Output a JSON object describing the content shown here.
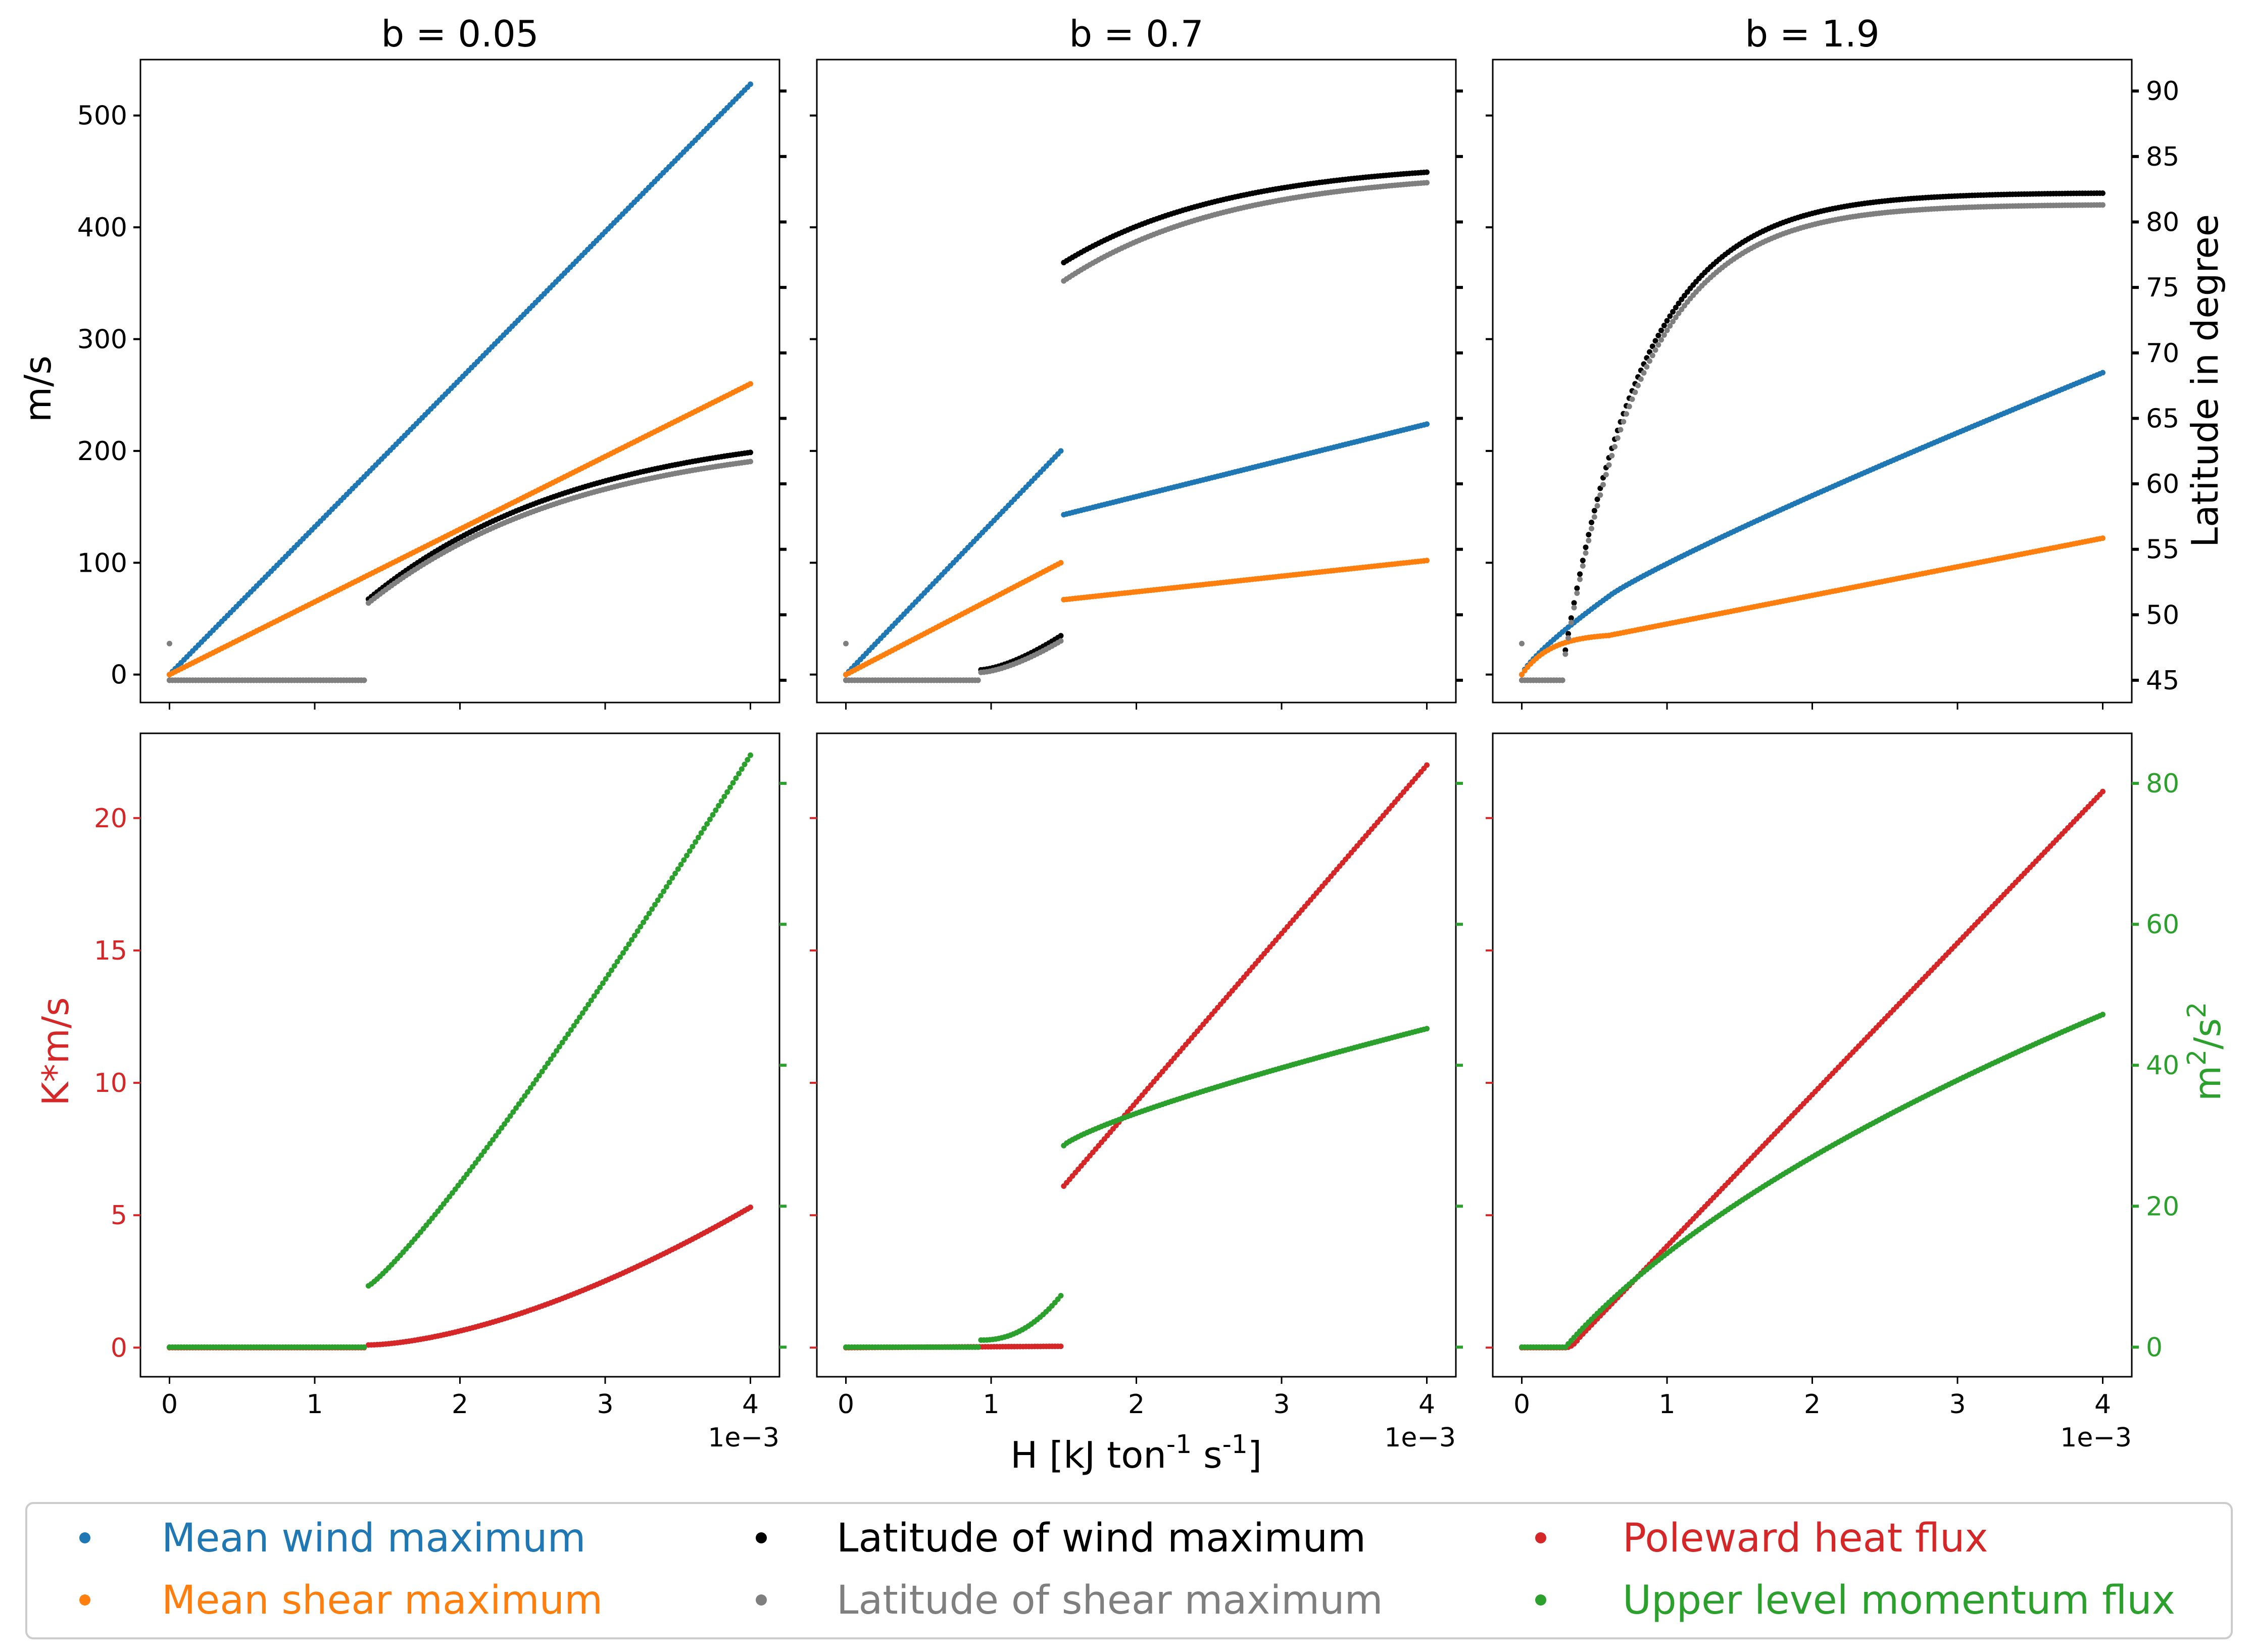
{
  "figure": {
    "xlabel": "H [kJ ton$^{-1}$ s$^{-1}$]",
    "x_offset_text": "1e−3",
    "left_ylabel_top": "m/s",
    "right_ylabel_top": "Latitude in degree",
    "left_ylabel_bottom": "K*m/s",
    "right_ylabel_bottom": "m$^{2}$/s$^{2}$"
  },
  "colors": {
    "blue": "#1f77b4",
    "orange": "#ff7f0e",
    "black": "#000000",
    "gray": "#7f7f7f",
    "red": "#d62728",
    "green": "#2ca02c"
  },
  "legend": {
    "items": [
      {
        "label": "Mean wind maximum",
        "color": "#1f77b4"
      },
      {
        "label": "Mean shear maximum",
        "color": "#ff7f0e"
      },
      {
        "label": "Latitude of wind maximum",
        "color": "#000000"
      },
      {
        "label": "Latitude of shear maximum",
        "color": "#7f7f7f"
      },
      {
        "label": "Poleward heat flux",
        "color": "#d62728"
      },
      {
        "label": "Upper level momentum flux",
        "color": "#2ca02c"
      }
    ]
  },
  "axes_ticks": {
    "x": [
      "0",
      "1",
      "2",
      "3",
      "4"
    ],
    "top_left": [
      "0",
      "100",
      "200",
      "300",
      "400",
      "500"
    ],
    "top_right": [
      "45",
      "50",
      "55",
      "60",
      "65",
      "70",
      "75",
      "80",
      "85",
      "90"
    ],
    "bottom_left": [
      "0",
      "5",
      "10",
      "15",
      "20"
    ],
    "bottom_right": [
      "0",
      "20",
      "40",
      "60",
      "80"
    ]
  },
  "chart_data": [
    {
      "type": "scatter",
      "title": "b = 0.05",
      "row": "top",
      "xlim": [
        -0.0002,
        0.0042
      ],
      "ylim_left": [
        -25,
        550
      ],
      "ylim_right": [
        43.3,
        92.4
      ],
      "series": [
        {
          "name": "Mean wind maximum",
          "axis": "left",
          "color": "#1f77b4",
          "segments": [
            {
              "x0": 0,
              "x1": 0.004,
              "y0": 0,
              "y1": 528,
              "shape": "linear"
            }
          ]
        },
        {
          "name": "Mean shear maximum",
          "axis": "left",
          "color": "#ff7f0e",
          "segments": [
            {
              "x0": 0,
              "x1": 0.004,
              "y0": 0,
              "y1": 260,
              "shape": "linear"
            }
          ]
        },
        {
          "name": "Latitude of wind maximum",
          "axis": "right",
          "color": "#000000",
          "segments": [
            {
              "x0": 0,
              "x1": 0.00134,
              "y0": 45,
              "y1": 45,
              "shape": "linear"
            },
            {
              "x0": 0.00137,
              "x1": 0.004,
              "y0": 51.2,
              "y1": 62.4,
              "shape": "sat",
              "k": 1.8
            }
          ]
        },
        {
          "name": "Latitude of shear maximum",
          "axis": "right",
          "color": "#7f7f7f",
          "singles": [
            {
              "x": 0,
              "y": 47.8
            }
          ],
          "segments": [
            {
              "x0": 0,
              "x1": 0.00134,
              "y0": 45,
              "y1": 45,
              "shape": "linear"
            },
            {
              "x0": 0.00137,
              "x1": 0.004,
              "y0": 50.9,
              "y1": 61.7,
              "shape": "sat",
              "k": 1.8
            }
          ]
        }
      ]
    },
    {
      "type": "scatter",
      "title": "b = 0.7",
      "row": "top",
      "xlim": [
        -0.0002,
        0.0042
      ],
      "ylim_left": [
        -25,
        550
      ],
      "ylim_right": [
        43.3,
        92.4
      ],
      "series": [
        {
          "name": "Mean wind maximum",
          "axis": "left",
          "color": "#1f77b4",
          "segments": [
            {
              "x0": 0,
              "x1": 0.00148,
              "y0": 0,
              "y1": 200,
              "shape": "linear"
            },
            {
              "x0": 0.0015,
              "x1": 0.004,
              "y0": 143,
              "y1": 224,
              "shape": "linear"
            }
          ]
        },
        {
          "name": "Mean shear maximum",
          "axis": "left",
          "color": "#ff7f0e",
          "segments": [
            {
              "x0": 0,
              "x1": 0.00148,
              "y0": 0,
              "y1": 100,
              "shape": "linear"
            },
            {
              "x0": 0.0015,
              "x1": 0.004,
              "y0": 67,
              "y1": 102,
              "shape": "linear"
            }
          ]
        },
        {
          "name": "Latitude of wind maximum",
          "axis": "right",
          "color": "#000000",
          "segments": [
            {
              "x0": 0,
              "x1": 0.00091,
              "y0": 45,
              "y1": 45,
              "shape": "linear"
            },
            {
              "x0": 0.00093,
              "x1": 0.00148,
              "y0": 45.8,
              "y1": 48.4,
              "shape": "pow",
              "p": 1.5
            },
            {
              "x0": 0.0015,
              "x1": 0.004,
              "y0": 76.9,
              "y1": 83.8,
              "shape": "sat",
              "k": 2.2
            }
          ]
        },
        {
          "name": "Latitude of shear maximum",
          "axis": "right",
          "color": "#7f7f7f",
          "singles": [
            {
              "x": 0,
              "y": 47.8
            }
          ],
          "segments": [
            {
              "x0": 0,
              "x1": 0.00091,
              "y0": 45,
              "y1": 45,
              "shape": "linear"
            },
            {
              "x0": 0.00093,
              "x1": 0.00148,
              "y0": 45.6,
              "y1": 48.0,
              "shape": "pow",
              "p": 1.5
            },
            {
              "x0": 0.0015,
              "x1": 0.004,
              "y0": 75.5,
              "y1": 83.0,
              "shape": "sat",
              "k": 2.2
            }
          ]
        }
      ]
    },
    {
      "type": "scatter",
      "title": "b = 1.9",
      "row": "top",
      "xlim": [
        -0.0002,
        0.0042
      ],
      "ylim_left": [
        -25,
        550
      ],
      "ylim_right": [
        43.3,
        92.4
      ],
      "series": [
        {
          "name": "Mean wind maximum",
          "axis": "left",
          "color": "#1f77b4",
          "segments": [
            {
              "x0": 0,
              "x1": 0.0006,
              "y0": 0,
              "y1": 70,
              "shape": "pow",
              "p": 0.8
            },
            {
              "x0": 0.0006,
              "x1": 0.004,
              "y0": 70,
              "y1": 270,
              "shape": "pow",
              "p": 0.9
            }
          ]
        },
        {
          "name": "Mean shear maximum",
          "axis": "left",
          "color": "#ff7f0e",
          "segments": [
            {
              "x0": 0,
              "x1": 0.0006,
              "y0": 0,
              "y1": 35,
              "shape": "sat",
              "k": 3
            },
            {
              "x0": 0.0006,
              "x1": 0.004,
              "y0": 35,
              "y1": 122,
              "shape": "linear"
            }
          ]
        },
        {
          "name": "Latitude of wind maximum",
          "axis": "right",
          "color": "#000000",
          "segments": [
            {
              "x0": 0,
              "x1": 0.00028,
              "y0": 45,
              "y1": 45,
              "shape": "linear"
            },
            {
              "x0": 0.0003,
              "x1": 0.004,
              "y0": 47.3,
              "y1": 82.2,
              "shape": "exp",
              "tau": 0.00055
            }
          ]
        },
        {
          "name": "Latitude of shear maximum",
          "axis": "right",
          "color": "#7f7f7f",
          "singles": [
            {
              "x": 0,
              "y": 47.8
            }
          ],
          "segments": [
            {
              "x0": 0,
              "x1": 0.00028,
              "y0": 45,
              "y1": 45,
              "shape": "linear"
            },
            {
              "x0": 0.0003,
              "x1": 0.004,
              "y0": 47.0,
              "y1": 81.3,
              "shape": "exp",
              "tau": 0.00055
            }
          ]
        }
      ]
    },
    {
      "type": "scatter",
      "title": "",
      "row": "bottom",
      "xlim": [
        -0.0002,
        0.0042
      ],
      "ylim_left": [
        -1.1,
        23.2
      ],
      "ylim_right": [
        -4.2,
        87.1
      ],
      "series": [
        {
          "name": "Poleward heat flux",
          "axis": "left",
          "color": "#d62728",
          "segments": [
            {
              "x0": 0,
              "x1": 0.00134,
              "y0": 0,
              "y1": 0,
              "shape": "linear"
            },
            {
              "x0": 0.00137,
              "x1": 0.004,
              "y0": 0.1,
              "y1": 5.3,
              "shape": "pow",
              "p": 1.6
            }
          ]
        },
        {
          "name": "Upper level momentum flux",
          "axis": "right",
          "color": "#2ca02c",
          "segments": [
            {
              "x0": 0,
              "x1": 0.00134,
              "y0": 0,
              "y1": 0,
              "shape": "linear"
            },
            {
              "x0": 0.00137,
              "x1": 0.004,
              "y0": 8.7,
              "y1": 84.0,
              "shape": "pow",
              "p": 1.15
            }
          ]
        }
      ]
    },
    {
      "type": "scatter",
      "title": "",
      "row": "bottom",
      "xlim": [
        -0.0002,
        0.0042
      ],
      "ylim_left": [
        -1.1,
        23.2
      ],
      "ylim_right": [
        -4.2,
        87.1
      ],
      "series": [
        {
          "name": "Poleward heat flux",
          "axis": "left",
          "color": "#d62728",
          "segments": [
            {
              "x0": 0,
              "x1": 0.00148,
              "y0": 0,
              "y1": 0.05,
              "shape": "linear"
            },
            {
              "x0": 0.0015,
              "x1": 0.004,
              "y0": 6.1,
              "y1": 22.0,
              "shape": "linear"
            }
          ]
        },
        {
          "name": "Upper level momentum flux",
          "axis": "right",
          "color": "#2ca02c",
          "segments": [
            {
              "x0": 0,
              "x1": 0.00091,
              "y0": 0,
              "y1": 0,
              "shape": "linear"
            },
            {
              "x0": 0.00093,
              "x1": 0.00148,
              "y0": 1.0,
              "y1": 7.3,
              "shape": "pow",
              "p": 2.2
            },
            {
              "x0": 0.0015,
              "x1": 0.004,
              "y0": 28.6,
              "y1": 45.2,
              "shape": "pow",
              "p": 0.8
            }
          ]
        }
      ]
    },
    {
      "type": "scatter",
      "title": "",
      "row": "bottom",
      "xlim": [
        -0.0002,
        0.0042
      ],
      "ylim_left": [
        -1.1,
        23.2
      ],
      "ylim_right": [
        -4.2,
        87.1
      ],
      "series": [
        {
          "name": "Poleward heat flux",
          "axis": "left",
          "color": "#d62728",
          "segments": [
            {
              "x0": 0,
              "x1": 0.00028,
              "y0": 0,
              "y1": 0,
              "shape": "linear"
            },
            {
              "x0": 0.0003,
              "x1": 0.0004,
              "y0": 0,
              "y1": 0.4,
              "shape": "pow",
              "p": 2
            },
            {
              "x0": 0.0004,
              "x1": 0.004,
              "y0": 0.4,
              "y1": 21.0,
              "shape": "linear"
            }
          ]
        },
        {
          "name": "Upper level momentum flux",
          "axis": "right",
          "color": "#2ca02c",
          "segments": [
            {
              "x0": 0,
              "x1": 0.00028,
              "y0": 0,
              "y1": 0,
              "shape": "linear"
            },
            {
              "x0": 0.0003,
              "x1": 0.004,
              "y0": 0,
              "y1": 47.2,
              "shape": "sqrt_sat",
              "s": 0.4
            }
          ]
        }
      ]
    }
  ]
}
